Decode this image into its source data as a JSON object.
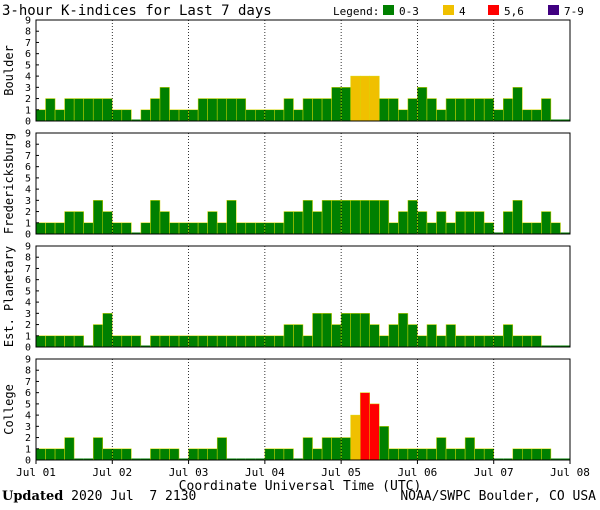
{
  "chart_data": {
    "type": "bar",
    "title": "3-hour K-indices for Last 7 days",
    "legend_label": "Legend:",
    "legend": [
      {
        "label": "0-3",
        "color": "#008000"
      },
      {
        "label": "4",
        "color": "#f0c000"
      },
      {
        "label": "5,6",
        "color": "#ff0000"
      },
      {
        "label": "7-9",
        "color": "#400080"
      }
    ],
    "xlabel": "Coordinate Universal Time (UTC)",
    "x_ticks": [
      "Jul 01",
      "Jul 02",
      "Jul 03",
      "Jul 04",
      "Jul 05",
      "Jul 06",
      "Jul 07",
      "Jul 08"
    ],
    "y_ticks": [
      "0",
      "1",
      "2",
      "3",
      "4",
      "5",
      "6",
      "7",
      "8",
      "9"
    ],
    "ylim": [
      0,
      9
    ],
    "bars_per_day": 8,
    "series": [
      {
        "name": "Boulder",
        "values": [
          1,
          2,
          1,
          2,
          2,
          2,
          2,
          2,
          1,
          1,
          0,
          1,
          2,
          3,
          1,
          1,
          1,
          2,
          2,
          2,
          2,
          2,
          1,
          1,
          1,
          1,
          2,
          1,
          2,
          2,
          2,
          3,
          3,
          4,
          4,
          4,
          2,
          2,
          1,
          2,
          3,
          2,
          1,
          2,
          2,
          2,
          2,
          2,
          1,
          2,
          3,
          1,
          1,
          2,
          0,
          0
        ]
      },
      {
        "name": "Fredericksburg",
        "values": [
          1,
          1,
          1,
          2,
          2,
          1,
          3,
          2,
          1,
          1,
          0,
          1,
          3,
          2,
          1,
          1,
          1,
          1,
          2,
          1,
          3,
          1,
          1,
          1,
          1,
          1,
          2,
          2,
          3,
          2,
          3,
          3,
          3,
          3,
          3,
          3,
          3,
          1,
          2,
          3,
          2,
          1,
          2,
          1,
          2,
          2,
          2,
          1,
          0,
          2,
          3,
          1,
          1,
          2,
          1,
          0
        ]
      },
      {
        "name": "Est. Planetary",
        "values": [
          1,
          1,
          1,
          1,
          1,
          0,
          2,
          3,
          1,
          1,
          1,
          0,
          1,
          1,
          1,
          1,
          1,
          1,
          1,
          1,
          1,
          1,
          1,
          1,
          1,
          1,
          2,
          2,
          1,
          3,
          3,
          2,
          3,
          3,
          3,
          2,
          1,
          2,
          3,
          2,
          1,
          2,
          1,
          2,
          1,
          1,
          1,
          1,
          1,
          2,
          1,
          1,
          1,
          0,
          0,
          0
        ]
      },
      {
        "name": "College",
        "values": [
          1,
          1,
          1,
          2,
          0,
          0,
          2,
          1,
          1,
          1,
          0,
          0,
          1,
          1,
          1,
          0,
          1,
          1,
          1,
          2,
          0,
          0,
          0,
          0,
          1,
          1,
          1,
          0,
          2,
          1,
          2,
          2,
          2,
          4,
          6,
          5,
          3,
          1,
          1,
          1,
          1,
          1,
          2,
          1,
          1,
          2,
          1,
          1,
          0,
          0,
          1,
          1,
          1,
          1,
          0,
          0
        ]
      }
    ]
  },
  "footer": {
    "updated_label": "Updated",
    "updated_value": " 2020 Jul  7 2130",
    "credit": "NOAA/SWPC Boulder, CO USA"
  }
}
